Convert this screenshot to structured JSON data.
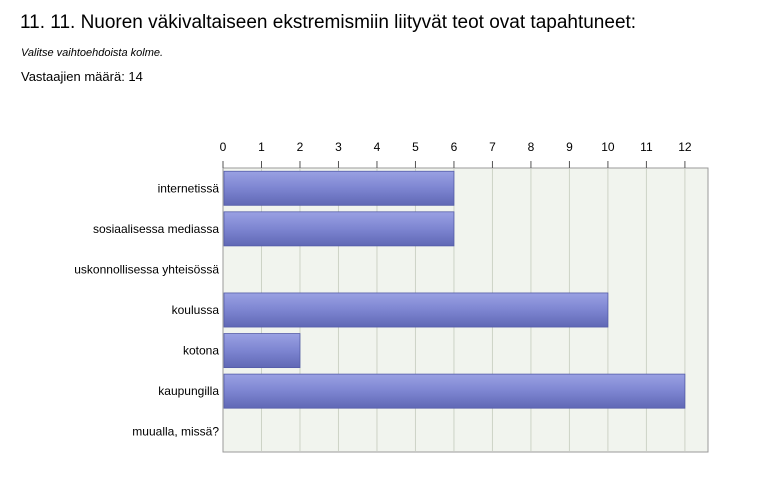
{
  "header": {
    "title": "11. 11. Nuoren väkivaltaiseen ekstremismiin liityvät teot ovat tapahtuneet:",
    "instruction": "Valitse vaihtoehdoista kolme.",
    "respondents": "Vastaajien määrä: 14"
  },
  "chart_data": {
    "type": "bar",
    "orientation": "horizontal",
    "categories": [
      "internetissä",
      "sosiaalisessa mediassa",
      "uskonnollisessa yhteisössä",
      "koulussa",
      "kotona",
      "kaupungilla",
      "muualla, missä?"
    ],
    "values": [
      6,
      6,
      0,
      10,
      2,
      12,
      0
    ],
    "xlim": [
      0,
      12.6
    ],
    "xticks": [
      "0",
      "1",
      "2",
      "3",
      "4",
      "5",
      "6",
      "7",
      "8",
      "9",
      "10",
      "11",
      "12"
    ],
    "xaxis_position": "top",
    "grid": true,
    "bar_color": "#7d85d1",
    "plot_background": "#f1f4ee"
  }
}
